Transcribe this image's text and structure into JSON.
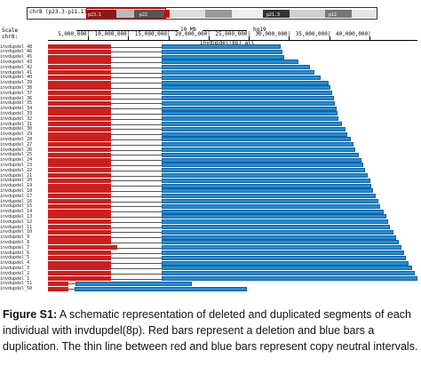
{
  "browser": {
    "chrom_label": "chr8 (p23.3-p11.1)",
    "bands": [
      "p23.1",
      "p22",
      "p21.3",
      "p12"
    ],
    "scale_label": "Scale",
    "chr_label": "chr8:",
    "scale_text": "10 Mb",
    "assembly_text": "hg19",
    "track_name": "invdupdel(8p) all",
    "ticks": [
      "5,000,000|",
      "10,000,000|",
      "15,000,000|",
      "20,000,000|",
      "25,000,000|",
      "30,000,000|",
      "35,000,000|",
      "40,000,000|"
    ]
  },
  "chart_data": {
    "type": "bar",
    "title": "",
    "xlabel": "",
    "ylabel": "",
    "xlim": [
      0,
      46000000
    ],
    "legend": "none",
    "rows": [
      {
        "label": "invdupdel_48",
        "del": [
          0,
          7800000
        ],
        "dup": [
          14100000,
          29000000
        ]
      },
      {
        "label": "invdupdel_46",
        "del": [
          0,
          7800000
        ],
        "dup": [
          14100000,
          29200000
        ]
      },
      {
        "label": "invdupdel_45",
        "del": [
          0,
          7800000
        ],
        "dup": [
          14100000,
          29400000
        ]
      },
      {
        "label": "invdupdel_43",
        "del": [
          0,
          7800000
        ],
        "dup": [
          14100000,
          31200000
        ]
      },
      {
        "label": "invdupdel_42",
        "del": [
          0,
          7800000
        ],
        "dup": [
          14100000,
          32600000
        ]
      },
      {
        "label": "invdupdel_41",
        "del": [
          0,
          7800000
        ],
        "dup": [
          14100000,
          33200000
        ]
      },
      {
        "label": "invdupdel_40",
        "del": [
          0,
          7800000
        ],
        "dup": [
          14100000,
          34000000
        ]
      },
      {
        "label": "invdupdel_39",
        "del": [
          0,
          7800000
        ],
        "dup": [
          14100000,
          34900000
        ]
      },
      {
        "label": "invdupdel_38",
        "del": [
          0,
          7800000
        ],
        "dup": [
          14100000,
          35200000
        ]
      },
      {
        "label": "invdupdel_37",
        "del": [
          0,
          7800000
        ],
        "dup": [
          14100000,
          35400000
        ]
      },
      {
        "label": "invdupdel_36",
        "del": [
          0,
          7800000
        ],
        "dup": [
          14100000,
          35600000
        ]
      },
      {
        "label": "invdupdel_35",
        "del": [
          0,
          7800000
        ],
        "dup": [
          14100000,
          35700000
        ]
      },
      {
        "label": "invdupdel_34",
        "del": [
          0,
          7800000
        ],
        "dup": [
          14100000,
          35900000
        ]
      },
      {
        "label": "invdupdel_33",
        "del": [
          0,
          7800000
        ],
        "dup": [
          14100000,
          36000000
        ]
      },
      {
        "label": "invdupdel_32",
        "del": [
          0,
          7800000
        ],
        "dup": [
          14100000,
          36200000
        ]
      },
      {
        "label": "invdupdel_31",
        "del": [
          0,
          7800000
        ],
        "dup": [
          14100000,
          36600000
        ]
      },
      {
        "label": "invdupdel_30",
        "del": [
          0,
          7800000
        ],
        "dup": [
          14100000,
          37000000
        ]
      },
      {
        "label": "invdupdel_29",
        "del": [
          0,
          7800000
        ],
        "dup": [
          14100000,
          37300000
        ]
      },
      {
        "label": "invdupdel_28",
        "del": [
          0,
          7800000
        ],
        "dup": [
          14100000,
          37700000
        ]
      },
      {
        "label": "invdupdel_27",
        "del": [
          0,
          7800000
        ],
        "dup": [
          14100000,
          38000000
        ]
      },
      {
        "label": "invdupdel_26",
        "del": [
          0,
          7800000
        ],
        "dup": [
          14100000,
          38300000
        ]
      },
      {
        "label": "invdupdel_25",
        "del": [
          0,
          7800000
        ],
        "dup": [
          14100000,
          38700000
        ]
      },
      {
        "label": "invdupdel_24",
        "del": [
          0,
          7800000
        ],
        "dup": [
          14100000,
          39000000
        ]
      },
      {
        "label": "invdupdel_23",
        "del": [
          0,
          7800000
        ],
        "dup": [
          14100000,
          39300000
        ]
      },
      {
        "label": "invdupdel_22",
        "del": [
          0,
          7800000
        ],
        "dup": [
          14100000,
          39500000
        ]
      },
      {
        "label": "invdupdel_21",
        "del": [
          0,
          7800000
        ],
        "dup": [
          14100000,
          39800000
        ]
      },
      {
        "label": "invdupdel_20",
        "del": [
          0,
          7800000
        ],
        "dup": [
          14100000,
          40100000
        ]
      },
      {
        "label": "invdupdel_19",
        "del": [
          0,
          7800000
        ],
        "dup": [
          14100000,
          40300000
        ]
      },
      {
        "label": "invdupdel_18",
        "del": [
          0,
          7800000
        ],
        "dup": [
          14100000,
          40500000
        ]
      },
      {
        "label": "invdupdel_17",
        "del": [
          0,
          7800000
        ],
        "dup": [
          14100000,
          40800000
        ]
      },
      {
        "label": "invdupdel_16",
        "del": [
          0,
          7800000
        ],
        "dup": [
          14100000,
          41100000
        ]
      },
      {
        "label": "invdupdel_15",
        "del": [
          0,
          7800000
        ],
        "dup": [
          14100000,
          41400000
        ]
      },
      {
        "label": "invdupdel_14",
        "del": [
          0,
          7800000
        ],
        "dup": [
          14100000,
          41800000
        ]
      },
      {
        "label": "invdupdel_13",
        "del": [
          0,
          7800000
        ],
        "dup": [
          14100000,
          42100000
        ]
      },
      {
        "label": "invdupdel_12",
        "del": [
          0,
          7800000
        ],
        "dup": [
          14100000,
          42300000
        ]
      },
      {
        "label": "invdupdel_11",
        "del": [
          0,
          7800000
        ],
        "dup": [
          14100000,
          42600000
        ]
      },
      {
        "label": "invdupdel_10",
        "del": [
          0,
          7800000
        ],
        "dup": [
          14100000,
          43000000
        ]
      },
      {
        "label": "invdupdel_9",
        "del": [
          0,
          7800000
        ],
        "dup": [
          14100000,
          43400000
        ]
      },
      {
        "label": "invdupdel_8",
        "del": [
          0,
          7800000
        ],
        "dup": [
          14100000,
          43700000
        ]
      },
      {
        "label": "invdupdel_7",
        "del": [
          0,
          8600000
        ],
        "dup": [
          14100000,
          44000000
        ]
      },
      {
        "label": "invdupdel_6",
        "del": [
          0,
          7800000
        ],
        "dup": [
          14100000,
          44300000
        ]
      },
      {
        "label": "invdupdel_5",
        "del": [
          0,
          7800000
        ],
        "dup": [
          14100000,
          44600000
        ]
      },
      {
        "label": "invdupdel_4",
        "del": [
          0,
          7800000
        ],
        "dup": [
          14100000,
          44900000
        ]
      },
      {
        "label": "invdupdel_3",
        "del": [
          0,
          7800000
        ],
        "dup": [
          14100000,
          45300000
        ]
      },
      {
        "label": "invdupdel_2",
        "del": [
          0,
          7800000
        ],
        "dup": [
          14100000,
          45700000
        ]
      },
      {
        "label": "invdupdel_1",
        "del": [
          0,
          7800000
        ],
        "dup": [
          14100000,
          46000000
        ]
      },
      {
        "label": "invdupdel_51",
        "del": [
          0,
          2500000
        ],
        "dup": [
          3400000,
          17900000
        ]
      },
      {
        "label": "invdupdel_50",
        "del": [
          0,
          2500000
        ],
        "dup": [
          3300000,
          24800000
        ]
      }
    ],
    "colors": {
      "deletion": "#cc1f1f",
      "duplication": "#1f8fd6",
      "neutral": "#555555"
    }
  },
  "caption": {
    "label": "Figure S1:",
    "text": "A schematic representation of deleted and duplicated segments of each individual with invdupdel(8p). Red bars represent a deletion and blue bars a duplication. The thin line between red and blue bars represent copy neutral intervals."
  }
}
